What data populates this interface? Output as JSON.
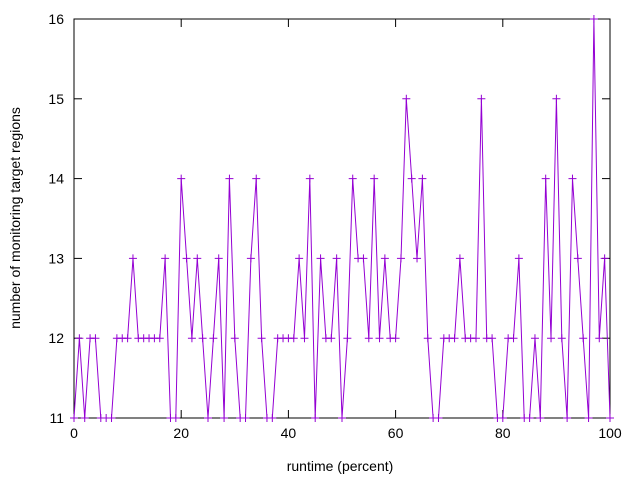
{
  "chart_data": {
    "type": "line",
    "title": "",
    "xlabel": "runtime (percent)",
    "ylabel": "number of monitoring target regions",
    "xlim": [
      0,
      100
    ],
    "ylim": [
      11,
      16
    ],
    "xticks": [
      0,
      20,
      40,
      60,
      80,
      100
    ],
    "yticks": [
      11,
      12,
      13,
      14,
      15,
      16
    ],
    "grid": false,
    "legend": "none",
    "marker": "plus",
    "series": [
      {
        "color": "#9400d3",
        "x": [
          0,
          1,
          2,
          3,
          4,
          5,
          6,
          7,
          8,
          9,
          10,
          11,
          12,
          13,
          14,
          15,
          16,
          17,
          18,
          19,
          20,
          21,
          22,
          23,
          24,
          25,
          26,
          27,
          28,
          29,
          30,
          31,
          32,
          33,
          34,
          35,
          36,
          37,
          38,
          39,
          40,
          41,
          42,
          43,
          44,
          45,
          46,
          47,
          48,
          49,
          50,
          51,
          52,
          53,
          54,
          55,
          56,
          57,
          58,
          59,
          60,
          61,
          62,
          63,
          64,
          65,
          66,
          67,
          68,
          69,
          70,
          71,
          72,
          73,
          74,
          75,
          76,
          77,
          78,
          79,
          80,
          81,
          82,
          83,
          84,
          85,
          86,
          87,
          88,
          89,
          90,
          91,
          92,
          93,
          94,
          95,
          96,
          97,
          98,
          99,
          100
        ],
        "y": [
          11,
          12,
          11,
          12,
          12,
          11,
          11,
          11,
          12,
          12,
          12,
          13,
          12,
          12,
          12,
          12,
          12,
          13,
          11,
          11,
          14,
          13,
          12,
          13,
          12,
          11,
          12,
          13,
          11,
          14,
          12,
          11,
          11,
          13,
          14,
          12,
          11,
          11,
          12,
          12,
          12,
          12,
          13,
          12,
          14,
          11,
          13,
          12,
          12,
          13,
          11,
          12,
          14,
          13,
          13,
          12,
          14,
          12,
          13,
          12,
          12,
          13,
          15,
          14,
          13,
          14,
          12,
          11,
          11,
          12,
          12,
          12,
          13,
          12,
          12,
          12,
          15,
          12,
          12,
          11,
          11,
          12,
          12,
          13,
          11,
          11,
          12,
          11,
          14,
          12,
          15,
          12,
          11,
          14,
          13,
          12,
          11,
          16,
          12,
          13,
          11
        ]
      }
    ]
  }
}
